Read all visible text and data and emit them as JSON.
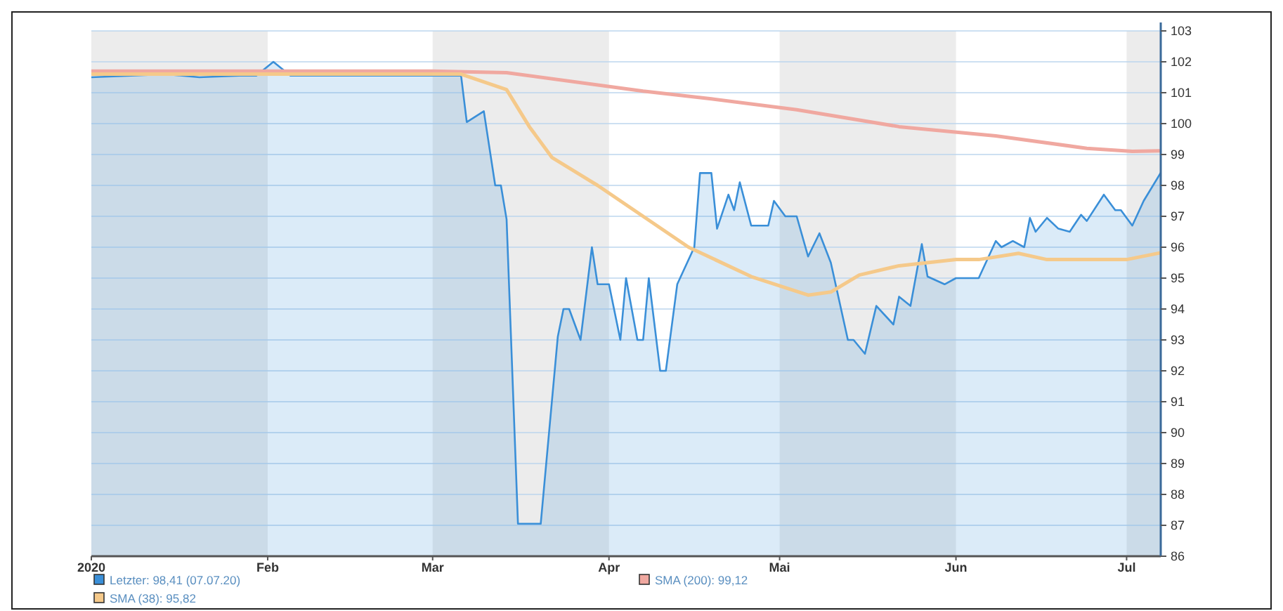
{
  "chart_data": {
    "type": "line",
    "xlim": [
      "2020-01-01",
      "2020-07-07"
    ],
    "xticks": [
      {
        "value": "2020-01-01",
        "label": "2020"
      },
      {
        "value": "2020-02-01",
        "label": "Feb"
      },
      {
        "value": "2020-03-01",
        "label": "Mar"
      },
      {
        "value": "2020-04-01",
        "label": "Apr"
      },
      {
        "value": "2020-05-01",
        "label": "Mai"
      },
      {
        "value": "2020-06-01",
        "label": "Jun"
      },
      {
        "value": "2020-07-01",
        "label": "Jul"
      }
    ],
    "ylim": [
      86,
      103
    ],
    "yticks": [
      86,
      87,
      88,
      89,
      90,
      91,
      92,
      93,
      94,
      95,
      96,
      97,
      98,
      99,
      100,
      101,
      102,
      103
    ],
    "grid": "y",
    "legend": "bottom",
    "marker": "none",
    "line_style": "solid",
    "bands": [
      {
        "axis": "x",
        "from": "2020-01-01",
        "to": "2020-02-01",
        "color": "#ececec"
      },
      {
        "axis": "x",
        "from": "2020-03-01",
        "to": "2020-04-01",
        "color": "#ececec"
      },
      {
        "axis": "x",
        "from": "2020-05-01",
        "to": "2020-06-01",
        "color": "#ececec"
      },
      {
        "axis": "x",
        "from": "2020-07-01",
        "to": "2020-07-07",
        "color": "#ececec"
      }
    ],
    "series": [
      {
        "name": "Letzter: 98,41 (07.07.20)",
        "type": "area",
        "color": "#3a8fd8",
        "x": [
          "2020-01-01",
          "2020-01-08",
          "2020-01-14",
          "2020-01-20",
          "2020-01-27",
          "2020-01-30",
          "2020-02-02",
          "2020-02-05",
          "2020-03-06",
          "2020-03-07",
          "2020-03-10",
          "2020-03-12",
          "2020-03-13",
          "2020-03-14",
          "2020-03-16",
          "2020-03-20",
          "2020-03-23",
          "2020-03-24",
          "2020-03-25",
          "2020-03-27",
          "2020-03-29",
          "2020-03-30",
          "2020-04-01",
          "2020-04-03",
          "2020-04-04",
          "2020-04-06",
          "2020-04-07",
          "2020-04-08",
          "2020-04-10",
          "2020-04-11",
          "2020-04-13",
          "2020-04-16",
          "2020-04-17",
          "2020-04-19",
          "2020-04-20",
          "2020-04-22",
          "2020-04-23",
          "2020-04-24",
          "2020-04-26",
          "2020-04-29",
          "2020-04-30",
          "2020-05-02",
          "2020-05-04",
          "2020-05-06",
          "2020-05-08",
          "2020-05-10",
          "2020-05-13",
          "2020-05-14",
          "2020-05-16",
          "2020-05-18",
          "2020-05-21",
          "2020-05-22",
          "2020-05-24",
          "2020-05-26",
          "2020-05-27",
          "2020-05-30",
          "2020-06-01",
          "2020-06-05",
          "2020-06-08",
          "2020-06-09",
          "2020-06-11",
          "2020-06-13",
          "2020-06-14",
          "2020-06-15",
          "2020-06-17",
          "2020-06-19",
          "2020-06-21",
          "2020-06-23",
          "2020-06-24",
          "2020-06-27",
          "2020-06-29",
          "2020-06-30",
          "2020-07-02",
          "2020-07-04",
          "2020-07-07"
        ],
        "values": [
          101.5,
          101.55,
          101.6,
          101.5,
          101.55,
          101.55,
          102.0,
          101.55,
          101.55,
          100.05,
          100.4,
          98.0,
          98.0,
          96.9,
          87.05,
          87.05,
          93.1,
          94.0,
          94.0,
          93.0,
          96.0,
          94.8,
          94.8,
          93.0,
          95.0,
          93.0,
          93.0,
          95.0,
          92.0,
          92.0,
          94.8,
          96.0,
          98.4,
          98.4,
          96.6,
          97.7,
          97.2,
          98.1,
          96.7,
          96.7,
          97.5,
          97.0,
          97.0,
          95.7,
          96.45,
          95.5,
          93.0,
          93.0,
          92.55,
          94.1,
          93.5,
          94.4,
          94.1,
          96.1,
          95.05,
          94.8,
          95.0,
          95.0,
          96.2,
          96.0,
          96.2,
          96.0,
          96.95,
          96.5,
          96.95,
          96.6,
          96.5,
          97.05,
          96.85,
          97.7,
          97.2,
          97.2,
          96.7,
          97.5,
          98.41
        ]
      },
      {
        "name": "SMA (200): 99,12",
        "color": "#f0a8a0",
        "x": [
          "2020-01-01",
          "2020-03-01",
          "2020-03-14",
          "2020-04-07",
          "2020-04-19",
          "2020-05-04",
          "2020-05-22",
          "2020-06-08",
          "2020-06-24",
          "2020-07-02",
          "2020-07-07"
        ],
        "values": [
          101.7,
          101.7,
          101.65,
          101.05,
          100.8,
          100.45,
          99.9,
          99.6,
          99.2,
          99.1,
          99.12
        ]
      },
      {
        "name": "SMA (38): 95,82",
        "color": "#f5c98a",
        "x": [
          "2020-01-01",
          "2020-03-06",
          "2020-03-14",
          "2020-03-18",
          "2020-03-22",
          "2020-03-30",
          "2020-04-07",
          "2020-04-15",
          "2020-04-26",
          "2020-05-06",
          "2020-05-10",
          "2020-05-15",
          "2020-05-22",
          "2020-06-01",
          "2020-06-05",
          "2020-06-12",
          "2020-06-17",
          "2020-06-24",
          "2020-07-01",
          "2020-07-07"
        ],
        "values": [
          101.6,
          101.6,
          101.1,
          99.9,
          98.9,
          98.0,
          97.0,
          96.0,
          95.05,
          94.45,
          94.55,
          95.1,
          95.4,
          95.6,
          95.6,
          95.8,
          95.6,
          95.6,
          95.6,
          95.82
        ]
      }
    ]
  }
}
